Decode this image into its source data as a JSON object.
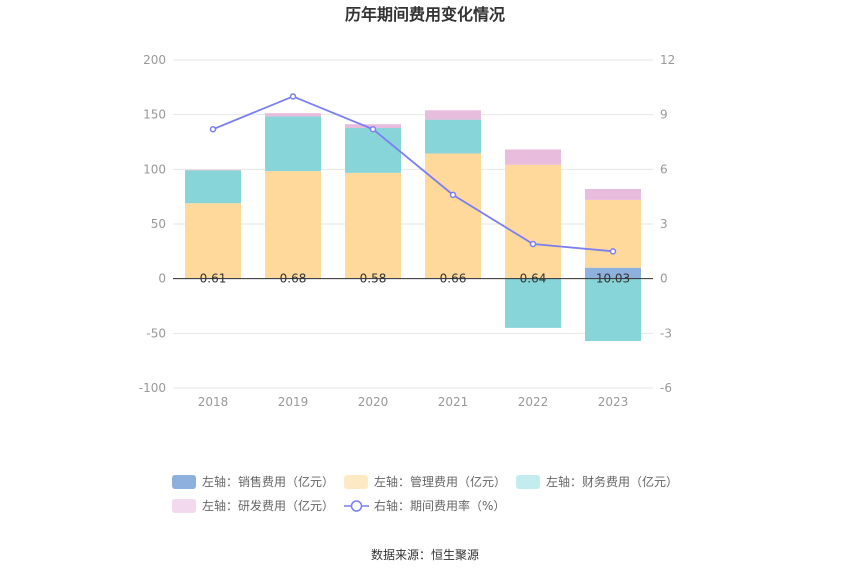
{
  "chart_data": {
    "type": "bar",
    "title": "历年期间费用变化情况",
    "source": "数据来源：恒生聚源",
    "categories": [
      "2018",
      "2019",
      "2020",
      "2021",
      "2022",
      "2023"
    ],
    "left_axis": {
      "min": -100,
      "max": 200,
      "ticks": [
        "-100",
        "-50",
        "0",
        "50",
        "100",
        "150",
        "200"
      ]
    },
    "right_axis": {
      "min": -6,
      "max": 12,
      "ticks": [
        "-6",
        "-3",
        "0",
        "3",
        "6",
        "9",
        "12"
      ]
    },
    "series": [
      {
        "name": "左轴：销售费用（亿元）",
        "color": "#8eb0dc",
        "axis": "left",
        "values": [
          0.61,
          0.68,
          0.58,
          0.66,
          0.64,
          10.03
        ],
        "labels": [
          "0.61",
          "0.68",
          "0.58",
          "0.66",
          "0.64",
          "10.03"
        ]
      },
      {
        "name": "左轴：管理费用（亿元）",
        "color": "#ffd99b",
        "axis": "left",
        "values": [
          68.4,
          97.7,
          96.2,
          113.8,
          103.5,
          62.0
        ]
      },
      {
        "name": "左轴：财务费用（亿元）",
        "color": "#87d5d9",
        "axis": "left",
        "values": [
          30.0,
          50.0,
          41.0,
          31.0,
          -45.0,
          -57.0
        ]
      },
      {
        "name": "左轴：研发费用（亿元）",
        "color": "#e8bcdc",
        "axis": "left",
        "values": [
          0.5,
          3.0,
          3.5,
          8.5,
          14.0,
          10.0
        ]
      },
      {
        "name": "右轴：期间费用率（%）",
        "color": "#7b7ff0",
        "axis": "right",
        "type": "line",
        "values": [
          8.2,
          10.0,
          8.2,
          4.6,
          1.9,
          1.5
        ]
      }
    ]
  }
}
